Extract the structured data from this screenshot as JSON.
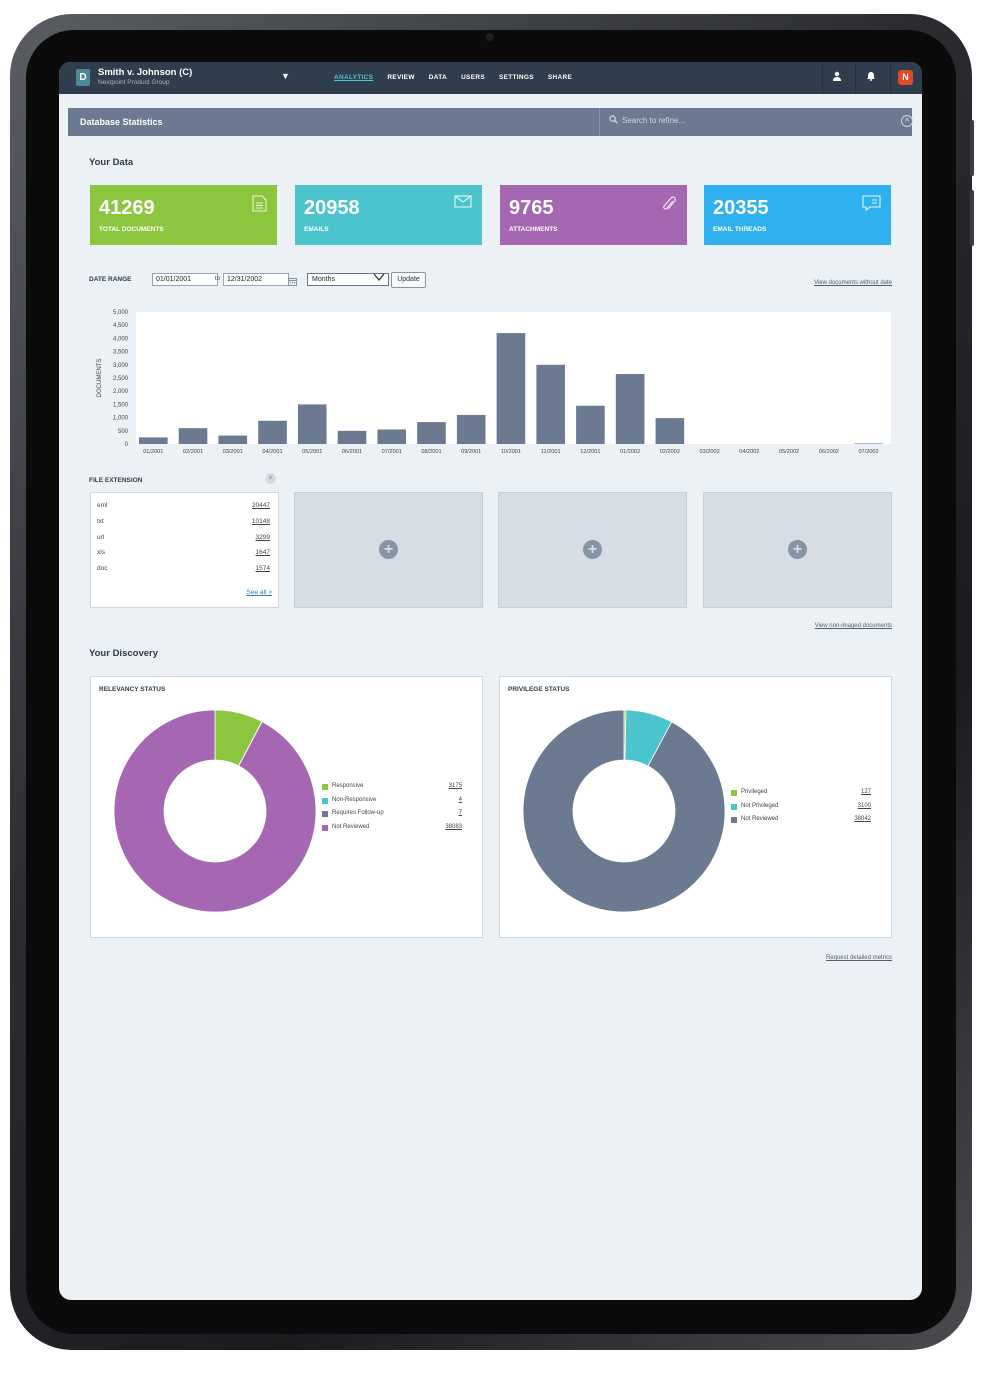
{
  "case": {
    "badge": "D",
    "title": "Smith v. Johnson (C)",
    "subtitle": "Nextpoint Product Group"
  },
  "nav": {
    "links": [
      "ANALYTICS",
      "REVIEW",
      "DATA",
      "USERS",
      "SETTINGS",
      "SHARE"
    ],
    "active": "ANALYTICS",
    "brand_glyph": "N"
  },
  "header": {
    "title": "Database Statistics",
    "search_placeholder": "Search to refine..."
  },
  "your_data": {
    "title": "Your Data",
    "stats": [
      {
        "value": "41269",
        "label": "TOTAL DOCUMENTS",
        "color": "#8cc63f",
        "icon": "document-icon"
      },
      {
        "value": "20958",
        "label": "EMAILS",
        "color": "#4cc4cd",
        "icon": "envelope-icon"
      },
      {
        "value": "9765",
        "label": "ATTACHMENTS",
        "color": "#a567b1",
        "icon": "paperclip-icon"
      },
      {
        "value": "20355",
        "label": "EMAIL THREADS",
        "color": "#2fb1f0",
        "icon": "chat-icon"
      }
    ]
  },
  "date_range": {
    "label": "DATE RANGE",
    "from": "01/01/2001",
    "to_label": "to",
    "to": "12/31/2002",
    "granularity": "Months",
    "update_label": "Update",
    "no_date_link": "View documents without date"
  },
  "chart_data": {
    "type": "bar",
    "ylabel": "DOCUMENTS",
    "ylim": [
      0,
      5000
    ],
    "yticks": [
      "0",
      "500",
      "1,000",
      "1,500",
      "2,000",
      "2,500",
      "3,000",
      "3,500",
      "4,000",
      "4,500",
      "5,000"
    ],
    "categories": [
      "01/2001",
      "02/2001",
      "03/2001",
      "04/2001",
      "05/2001",
      "06/2001",
      "07/2001",
      "08/2001",
      "09/2001",
      "10/2001",
      "11/2001",
      "12/2001",
      "01/2002",
      "02/2002",
      "03/2002",
      "04/2002",
      "05/2002",
      "06/2002",
      "07/2002"
    ],
    "values": [
      250,
      600,
      320,
      880,
      1500,
      500,
      550,
      830,
      1100,
      4200,
      3000,
      1450,
      2650,
      980,
      0,
      0,
      0,
      0,
      20
    ],
    "bar_color": "#6c7a91",
    "grid": false
  },
  "file_extension": {
    "title": "FILE EXTENSION",
    "items": [
      {
        "ext": "eml",
        "count": "20447"
      },
      {
        "ext": "txt",
        "count": "10148"
      },
      {
        "ext": "url",
        "count": "3299"
      },
      {
        "ext": "xls",
        "count": "1647"
      },
      {
        "ext": "doc",
        "count": "1574"
      }
    ],
    "see_all": "See all >",
    "non_imaged_link": "View non-imaged documents"
  },
  "your_discovery": {
    "title": "Your Discovery",
    "relevancy": {
      "title": "RELEVANCY STATUS",
      "items": [
        {
          "label": "Responsive",
          "value": "3175",
          "color": "#8cc63f"
        },
        {
          "label": "Non-Responsive",
          "value": "4",
          "color": "#4cc4cd"
        },
        {
          "label": "Requires Follow-up",
          "value": "7",
          "color": "#6c7a91"
        },
        {
          "label": "Not Reviewed",
          "value": "38083",
          "color": "#a567b1"
        }
      ]
    },
    "privilege": {
      "title": "PRIVILEGE STATUS",
      "items": [
        {
          "label": "Privileged",
          "value": "127",
          "color": "#8cc63f"
        },
        {
          "label": "Not Privileged",
          "value": "3100",
          "color": "#4cc4cd"
        },
        {
          "label": "Not Reviewed",
          "value": "38042",
          "color": "#6c7a91"
        }
      ]
    },
    "metrics_link": "Request detailed metrics"
  }
}
